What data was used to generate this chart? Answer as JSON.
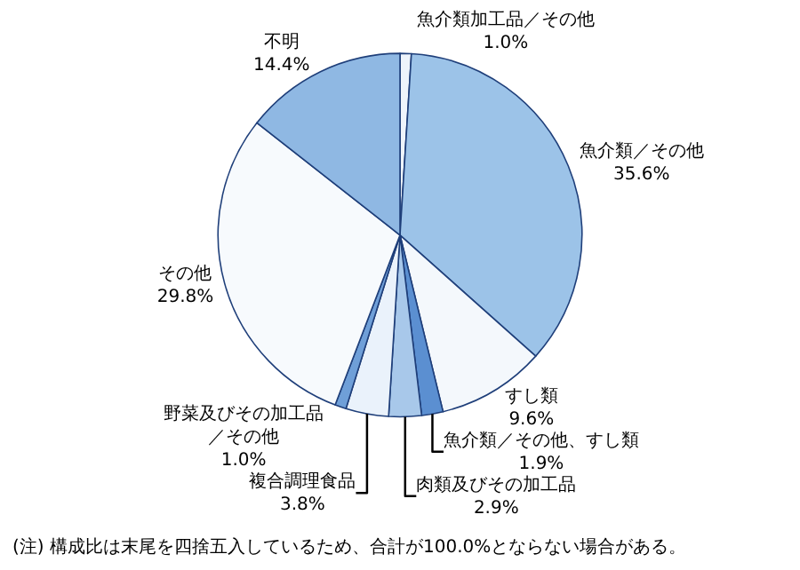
{
  "chart_data": {
    "type": "pie",
    "categories": [
      "魚介類加工品／その他",
      "魚介類／その他",
      "すし類",
      "魚介類／その他、すし類",
      "肉類及びその加工品",
      "複合調理食品",
      "野菜及びその加工品／その他",
      "その他",
      "不明"
    ],
    "values": [
      1.0,
      35.6,
      9.6,
      1.9,
      2.9,
      3.8,
      1.0,
      29.8,
      14.4
    ],
    "value_labels": [
      "1.0%",
      "35.6%",
      "9.6%",
      "1.9%",
      "2.9%",
      "3.8%",
      "1.0%",
      "29.8%",
      "14.4%"
    ],
    "colors": [
      "#eef4fb",
      "#9cc3e8",
      "#f4f8fc",
      "#5b8fd1",
      "#a8c8ea",
      "#eaf2fb",
      "#6f9fd8",
      "#f7fafd",
      "#8fb8e3"
    ],
    "annotations": [
      "(注) 構成比は末尾を四捨五入しているため、合計が100.0%とならない場合がある。"
    ],
    "legend": false
  }
}
